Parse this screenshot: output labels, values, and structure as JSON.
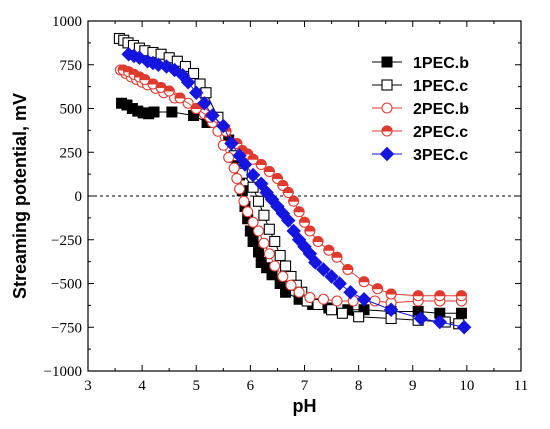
{
  "chart_data": {
    "type": "scatter",
    "xlabel": "pH",
    "ylabel": "Streaming potential, mV",
    "xlim": [
      3,
      11
    ],
    "ylim": [
      -1000,
      1000
    ],
    "x_ticks": [
      "3",
      "4",
      "5",
      "6",
      "7",
      "8",
      "9",
      "10",
      "11"
    ],
    "y_ticks": [
      "−1000",
      "−750",
      "−500",
      "−250",
      "0",
      "250",
      "500",
      "750",
      "1000"
    ],
    "zero_line": true,
    "grid": false,
    "legend_position": "top-right",
    "series": [
      {
        "name": "1PEC.b",
        "color": "#000000",
        "marker": "square-filled",
        "points": [
          [
            3.62,
            530
          ],
          [
            3.72,
            520
          ],
          [
            3.82,
            500
          ],
          [
            3.92,
            485
          ],
          [
            4.02,
            475
          ],
          [
            4.12,
            470
          ],
          [
            4.22,
            480
          ],
          [
            4.55,
            480
          ],
          [
            4.95,
            460
          ],
          [
            5.2,
            420
          ],
          [
            5.45,
            380
          ],
          [
            5.6,
            320
          ],
          [
            5.7,
            220
          ],
          [
            5.8,
            120
          ],
          [
            5.85,
            30
          ],
          [
            5.9,
            -60
          ],
          [
            5.95,
            -130
          ],
          [
            6.0,
            -200
          ],
          [
            6.05,
            -260
          ],
          [
            6.15,
            -320
          ],
          [
            6.2,
            -380
          ],
          [
            6.3,
            -410
          ],
          [
            6.4,
            -450
          ],
          [
            6.55,
            -500
          ],
          [
            6.65,
            -550
          ],
          [
            6.9,
            -590
          ],
          [
            7.15,
            -620
          ],
          [
            7.45,
            -640
          ],
          [
            7.8,
            -650
          ],
          [
            8.1,
            -650
          ],
          [
            8.6,
            -660
          ],
          [
            9.1,
            -660
          ],
          [
            9.5,
            -670
          ],
          [
            9.9,
            -670
          ]
        ]
      },
      {
        "name": "1PEC.c",
        "color": "#000000",
        "marker": "square-open",
        "points": [
          [
            3.58,
            900
          ],
          [
            3.66,
            890
          ],
          [
            3.74,
            875
          ],
          [
            3.84,
            860
          ],
          [
            3.95,
            845
          ],
          [
            4.05,
            830
          ],
          [
            4.2,
            820
          ],
          [
            4.35,
            810
          ],
          [
            4.5,
            790
          ],
          [
            4.65,
            770
          ],
          [
            4.8,
            740
          ],
          [
            4.95,
            700
          ],
          [
            5.07,
            640
          ],
          [
            5.18,
            590
          ],
          [
            5.4,
            450
          ],
          [
            5.7,
            230
          ],
          [
            5.85,
            130
          ],
          [
            6.05,
            50
          ],
          [
            6.15,
            -30
          ],
          [
            6.25,
            -110
          ],
          [
            6.35,
            -190
          ],
          [
            6.45,
            -260
          ],
          [
            6.55,
            -340
          ],
          [
            6.65,
            -400
          ],
          [
            6.75,
            -460
          ],
          [
            6.85,
            -510
          ],
          [
            6.95,
            -550
          ],
          [
            7.05,
            -600
          ],
          [
            7.25,
            -620
          ],
          [
            7.5,
            -650
          ],
          [
            7.7,
            -670
          ],
          [
            8.0,
            -690
          ],
          [
            8.6,
            -700
          ],
          [
            9.1,
            -710
          ],
          [
            9.6,
            -720
          ],
          [
            9.85,
            -730
          ]
        ]
      },
      {
        "name": "2PEC.b",
        "color": "#e03a2f",
        "marker": "circle-open",
        "points": [
          [
            3.6,
            720
          ],
          [
            3.7,
            700
          ],
          [
            3.8,
            680
          ],
          [
            3.9,
            665
          ],
          [
            4.0,
            650
          ],
          [
            4.1,
            635
          ],
          [
            4.25,
            615
          ],
          [
            4.4,
            590
          ],
          [
            4.6,
            560
          ],
          [
            4.85,
            530
          ],
          [
            5.0,
            500
          ],
          [
            5.15,
            470
          ],
          [
            5.3,
            420
          ],
          [
            5.4,
            370
          ],
          [
            5.5,
            290
          ],
          [
            5.6,
            220
          ],
          [
            5.7,
            160
          ],
          [
            5.75,
            100
          ],
          [
            5.8,
            40
          ],
          [
            5.88,
            -30
          ],
          [
            5.95,
            -90
          ],
          [
            6.05,
            -150
          ],
          [
            6.15,
            -200
          ],
          [
            6.25,
            -270
          ],
          [
            6.35,
            -330
          ],
          [
            6.45,
            -400
          ],
          [
            6.6,
            -460
          ],
          [
            6.75,
            -510
          ],
          [
            6.9,
            -550
          ],
          [
            7.1,
            -580
          ],
          [
            7.35,
            -590
          ],
          [
            7.6,
            -600
          ],
          [
            7.9,
            -600
          ],
          [
            8.3,
            -600
          ],
          [
            8.6,
            -610
          ],
          [
            9.1,
            -600
          ],
          [
            9.5,
            -600
          ],
          [
            9.9,
            -600
          ]
        ]
      },
      {
        "name": "2PEC.c",
        "color": "#e03a2f",
        "marker": "circle-half",
        "points": [
          [
            3.65,
            720
          ],
          [
            3.75,
            710
          ],
          [
            3.85,
            695
          ],
          [
            3.95,
            680
          ],
          [
            4.05,
            665
          ],
          [
            4.2,
            640
          ],
          [
            4.35,
            620
          ],
          [
            4.5,
            600
          ],
          [
            4.7,
            560
          ],
          [
            5.0,
            500
          ],
          [
            5.25,
            450
          ],
          [
            5.55,
            370
          ],
          [
            5.75,
            300
          ],
          [
            5.85,
            260
          ],
          [
            5.95,
            240
          ],
          [
            6.05,
            210
          ],
          [
            6.2,
            180
          ],
          [
            6.35,
            140
          ],
          [
            6.5,
            100
          ],
          [
            6.6,
            60
          ],
          [
            6.7,
            20
          ],
          [
            6.8,
            -30
          ],
          [
            6.9,
            -90
          ],
          [
            7.0,
            -150
          ],
          [
            7.1,
            -200
          ],
          [
            7.25,
            -260
          ],
          [
            7.45,
            -310
          ],
          [
            7.6,
            -350
          ],
          [
            7.8,
            -420
          ],
          [
            8.1,
            -490
          ],
          [
            8.35,
            -530
          ],
          [
            8.6,
            -560
          ],
          [
            9.1,
            -570
          ],
          [
            9.5,
            -570
          ],
          [
            9.9,
            -570
          ]
        ]
      },
      {
        "name": "3PEC.c",
        "color": "#1515e0",
        "marker": "diamond-filled",
        "points": [
          [
            3.75,
            810
          ],
          [
            3.85,
            800
          ],
          [
            3.95,
            790
          ],
          [
            4.1,
            770
          ],
          [
            4.2,
            760
          ],
          [
            4.3,
            750
          ],
          [
            4.45,
            740
          ],
          [
            4.6,
            720
          ],
          [
            4.75,
            690
          ],
          [
            4.85,
            650
          ],
          [
            5.0,
            590
          ],
          [
            5.15,
            530
          ],
          [
            5.3,
            460
          ],
          [
            5.5,
            400
          ],
          [
            5.65,
            300
          ],
          [
            5.8,
            230
          ],
          [
            5.9,
            180
          ],
          [
            6.05,
            120
          ],
          [
            6.2,
            70
          ],
          [
            6.3,
            20
          ],
          [
            6.4,
            -20
          ],
          [
            6.5,
            -60
          ],
          [
            6.6,
            -100
          ],
          [
            6.7,
            -140
          ],
          [
            6.8,
            -200
          ],
          [
            6.9,
            -250
          ],
          [
            7.0,
            -290
          ],
          [
            7.1,
            -330
          ],
          [
            7.2,
            -380
          ],
          [
            7.35,
            -420
          ],
          [
            7.5,
            -460
          ],
          [
            7.65,
            -500
          ],
          [
            7.85,
            -550
          ],
          [
            8.1,
            -590
          ],
          [
            8.6,
            -650
          ],
          [
            9.15,
            -700
          ],
          [
            9.5,
            -720
          ],
          [
            9.95,
            -750
          ]
        ]
      }
    ]
  }
}
